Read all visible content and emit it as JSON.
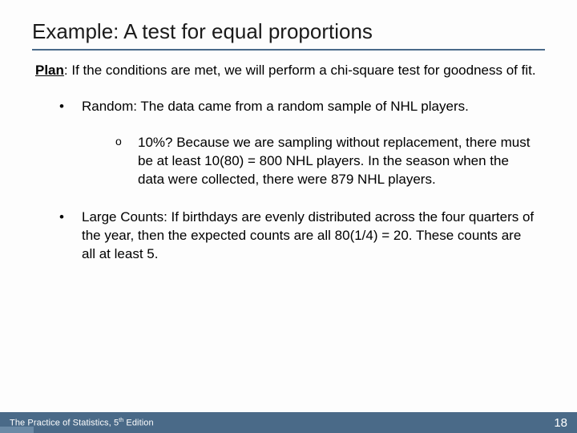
{
  "colors": {
    "title_underline": "#4a6a8a",
    "footer_bg": "#4a6a88",
    "footer_accent": "#6b8aa6",
    "footer_text": "#ffffff",
    "body_text": "#000000",
    "background": "#fdfdfd"
  },
  "typography": {
    "title_fontsize": 26,
    "body_fontsize": 17,
    "footer_fontsize": 11,
    "pagenum_fontsize": 15,
    "font_family": "Arial"
  },
  "title": "Example: A test for equal proportions",
  "plan": {
    "label": "Plan",
    "text": ": If the conditions are met, we will perform a chi-square test for goodness of fit."
  },
  "bullets": [
    {
      "level": 1,
      "text": "Random: The data came from a random sample of NHL players."
    },
    {
      "level": 2,
      "text": "10%?  Because we are sampling without replacement, there must be at least 10(80) = 800 NHL players. In the season when the data were collected, there were 879 NHL players."
    },
    {
      "level": 1,
      "text": "Large Counts: If birthdays are evenly distributed across the four quarters of the year, then the expected counts are all 80(1/4) = 20. These counts are all at least 5."
    }
  ],
  "footer": {
    "left_pre": "The Practice of Statistics, 5",
    "left_sup": "th",
    "left_post": " Edition",
    "page": "18"
  }
}
